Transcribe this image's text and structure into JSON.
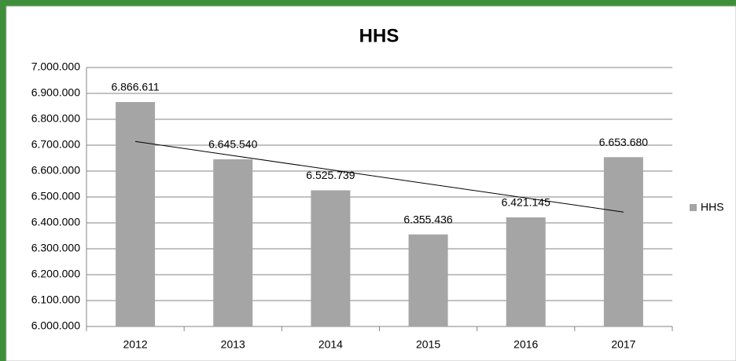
{
  "chart_data": {
    "type": "bar",
    "title": "HHS",
    "categories": [
      "2012",
      "2013",
      "2014",
      "2015",
      "2016",
      "2017"
    ],
    "series": [
      {
        "name": "HHS",
        "color": "#a5a5a5",
        "values": [
          6866611,
          6645540,
          6525739,
          6355436,
          6421145,
          6653680
        ],
        "value_labels": [
          "6.866.611",
          "6.645.540",
          "6.525.739",
          "6.355.436",
          "6.421.145",
          "6.653.680"
        ]
      }
    ],
    "ylim": [
      6000000,
      7000000
    ],
    "yticks": [
      {
        "value": 6000000,
        "label": "6.000.000"
      },
      {
        "value": 6100000,
        "label": "6.100.000"
      },
      {
        "value": 6200000,
        "label": "6.200.000"
      },
      {
        "value": 6300000,
        "label": "6.300.000"
      },
      {
        "value": 6400000,
        "label": "6.400.000"
      },
      {
        "value": 6500000,
        "label": "6.500.000"
      },
      {
        "value": 6600000,
        "label": "6.600.000"
      },
      {
        "value": 6700000,
        "label": "6.700.000"
      },
      {
        "value": 6800000,
        "label": "6.800.000"
      },
      {
        "value": 6900000,
        "label": "6.900.000"
      },
      {
        "value": 7000000,
        "label": "7.000.000"
      }
    ],
    "grid": true,
    "trendline": "linear",
    "legend": "right"
  }
}
